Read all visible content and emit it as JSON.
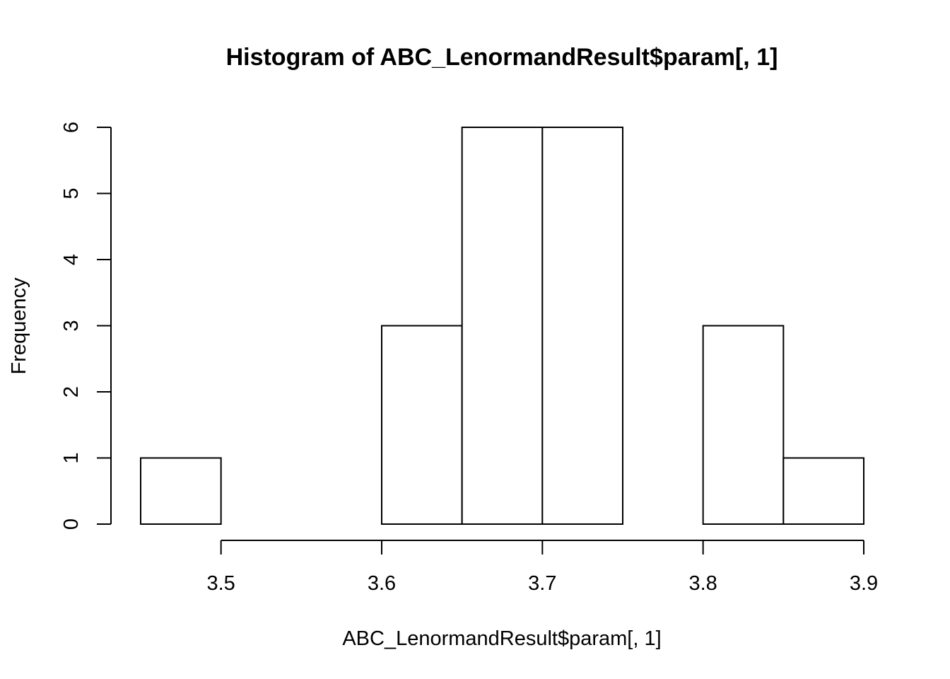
{
  "chart_data": {
    "type": "bar",
    "title": "Histogram of ABC_LenormandResult$param[, 1]",
    "xlabel": "ABC_LenormandResult$param[, 1]",
    "ylabel": "Frequency",
    "bin_edges": [
      3.45,
      3.5,
      3.55,
      3.6,
      3.65,
      3.7,
      3.75,
      3.8,
      3.85,
      3.9
    ],
    "values": [
      1,
      0,
      0,
      3,
      6,
      6,
      0,
      3,
      1
    ],
    "xlim": [
      3.45,
      3.9
    ],
    "ylim": [
      0,
      6
    ],
    "x_ticks": [
      3.5,
      3.6,
      3.7,
      3.8,
      3.9
    ],
    "x_tick_labels": [
      "3.5",
      "3.6",
      "3.7",
      "3.8",
      "3.9"
    ],
    "y_ticks": [
      0,
      1,
      2,
      3,
      4,
      5,
      6
    ],
    "y_tick_labels": [
      "0",
      "1",
      "2",
      "3",
      "4",
      "5",
      "6"
    ],
    "grid": false,
    "fill_color": "#ffffff",
    "stroke_color": "#000000"
  }
}
